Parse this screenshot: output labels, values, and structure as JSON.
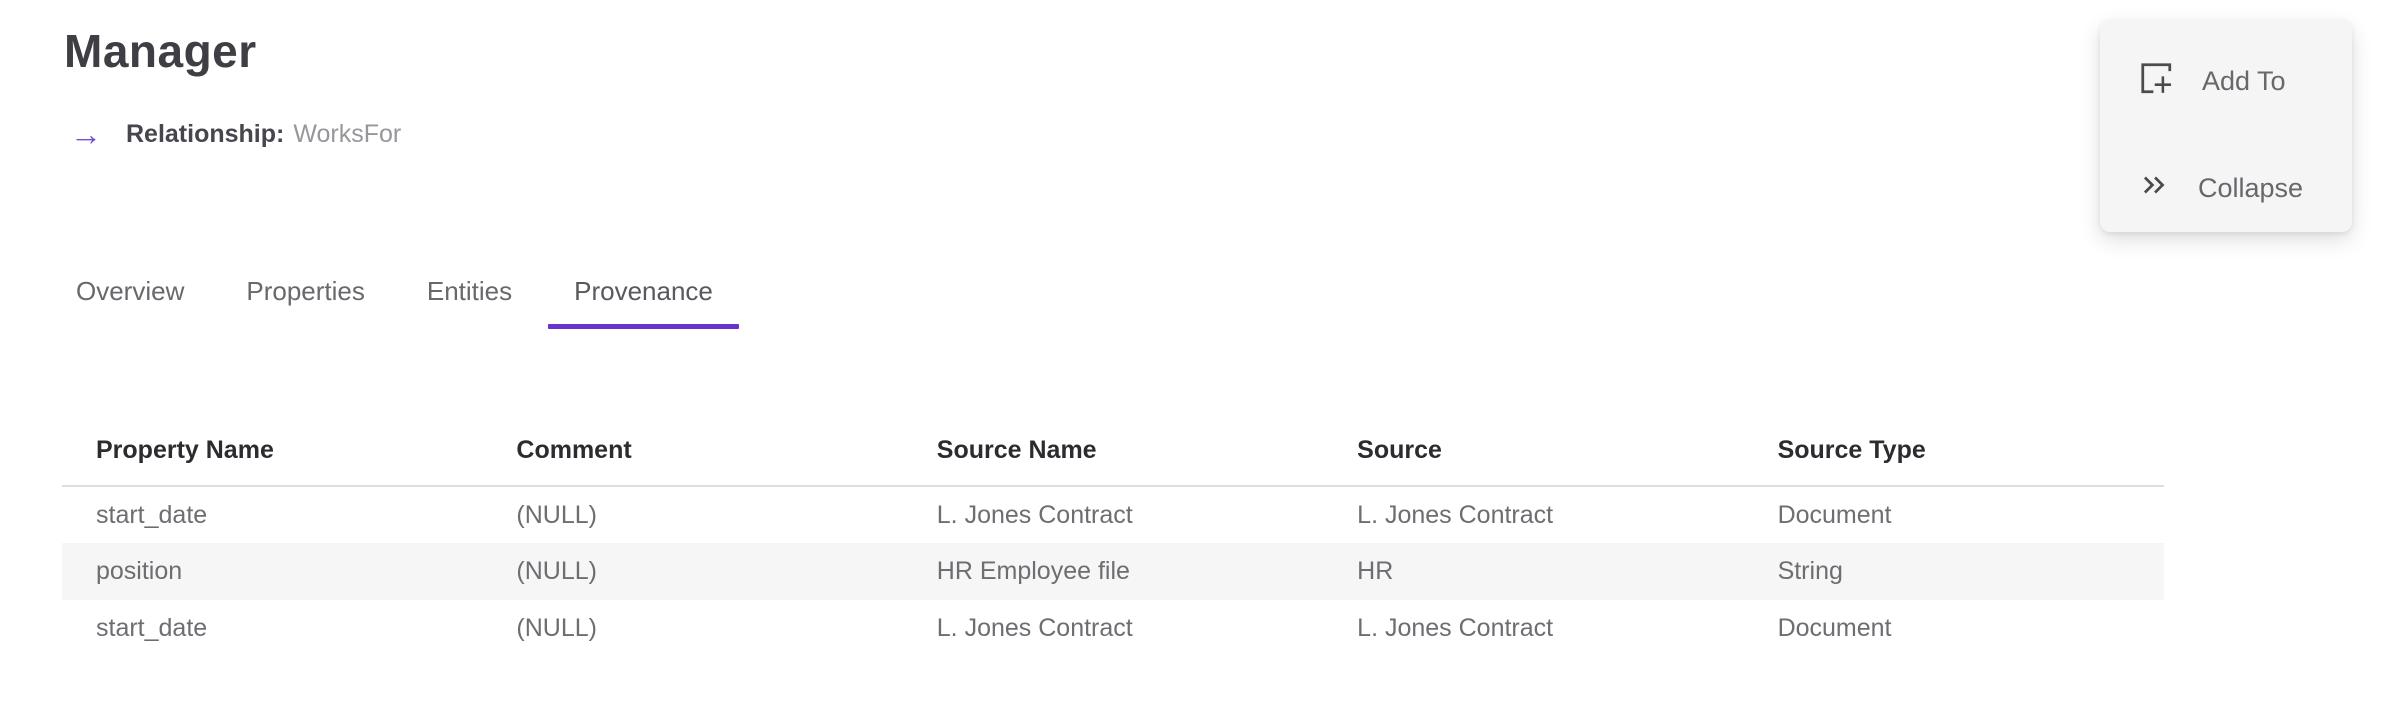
{
  "page": {
    "title": "Manager",
    "relationship": {
      "arrow_icon": "→",
      "label": "Relationship:",
      "value": "WorksFor"
    }
  },
  "tabs": [
    {
      "label": "Overview",
      "active": false
    },
    {
      "label": "Properties",
      "active": false
    },
    {
      "label": "Entities",
      "active": false
    },
    {
      "label": "Provenance",
      "active": true
    }
  ],
  "actions": [
    {
      "label": "Add To",
      "icon": "add-to-frame-icon"
    },
    {
      "label": "Collapse",
      "icon": "double-chevron-right-icon"
    }
  ],
  "table": {
    "columns": [
      "Property Name",
      "Comment",
      "Source Name",
      "Source",
      "Source Type"
    ],
    "rows": [
      [
        "start_date",
        "(NULL)",
        "L. Jones Contract",
        "L. Jones Contract",
        "Document"
      ],
      [
        "position",
        "(NULL)",
        "HR Employee file",
        "HR",
        "String"
      ],
      [
        "start_date",
        "(NULL)",
        "L. Jones Contract",
        "L. Jones Contract",
        "Document"
      ]
    ]
  },
  "colors": {
    "accent_purple": "#6633cc",
    "arrow_purple": "#7a4bdb",
    "title_text": "#3e3e44",
    "tab_text": "#68686d",
    "header_text": "#2c2c30",
    "row_text": "#6d6d72",
    "zebra_row_bg": "#f6f6f6",
    "table_border": "#dedede",
    "panel_bg": "#f5f5f6",
    "panel_text": "#67676c",
    "icon_stroke": "#4b4b4b"
  }
}
